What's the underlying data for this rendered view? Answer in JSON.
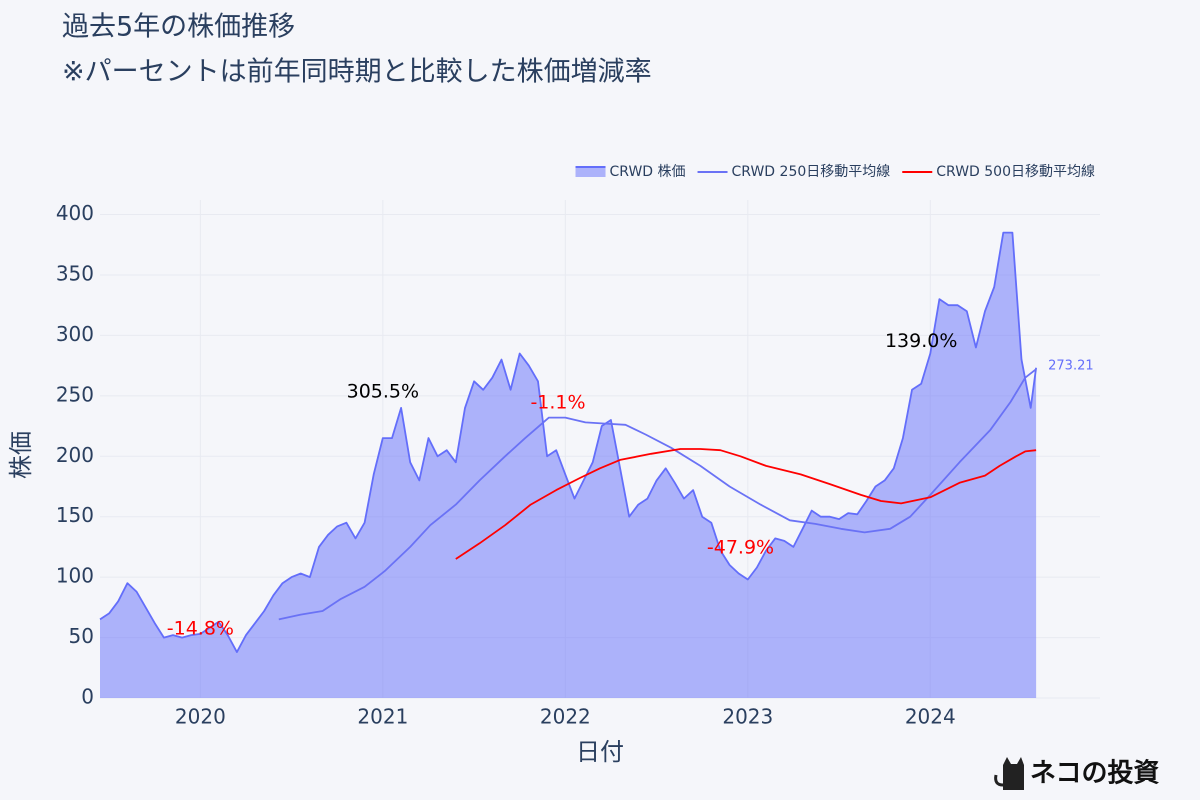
{
  "chart_data": {
    "type": "area",
    "title": "過去5年の株価推移",
    "subtitle": "※パーセントは前年同時期と比較した株価増減率",
    "x_label": "日付",
    "y_label": "株価",
    "watermark": "ネコの投資",
    "legend": "top-right",
    "grid": true,
    "xlim": [
      2019.45,
      2024.93
    ],
    "xticks": [
      2020,
      2021,
      2022,
      2023,
      2024
    ],
    "ylim": [
      0,
      412
    ],
    "yticks": [
      0,
      50,
      100,
      150,
      200,
      250,
      300,
      350,
      400
    ],
    "series": [
      {
        "name": "CRWD 株価",
        "color": "#636efa",
        "fill": true,
        "last_label": "273.21",
        "x": [
          2019.45,
          2019.5,
          2019.55,
          2019.6,
          2019.65,
          2019.7,
          2019.75,
          2019.8,
          2019.85,
          2019.9,
          2019.95,
          2020.0,
          2020.05,
          2020.1,
          2020.15,
          2020.2,
          2020.25,
          2020.3,
          2020.35,
          2020.4,
          2020.45,
          2020.5,
          2020.55,
          2020.6,
          2020.65,
          2020.7,
          2020.75,
          2020.8,
          2020.85,
          2020.9,
          2020.95,
          2021.0,
          2021.05,
          2021.1,
          2021.15,
          2021.2,
          2021.25,
          2021.3,
          2021.35,
          2021.4,
          2021.45,
          2021.5,
          2021.55,
          2021.6,
          2021.65,
          2021.7,
          2021.75,
          2021.8,
          2021.85,
          2021.9,
          2021.95,
          2022.0,
          2022.05,
          2022.1,
          2022.15,
          2022.2,
          2022.25,
          2022.3,
          2022.35,
          2022.4,
          2022.45,
          2022.5,
          2022.55,
          2022.6,
          2022.65,
          2022.7,
          2022.75,
          2022.8,
          2022.85,
          2022.9,
          2022.95,
          2023.0,
          2023.05,
          2023.1,
          2023.15,
          2023.2,
          2023.25,
          2023.3,
          2023.35,
          2023.4,
          2023.45,
          2023.5,
          2023.55,
          2023.6,
          2023.65,
          2023.7,
          2023.75,
          2023.8,
          2023.85,
          2023.9,
          2023.95,
          2024.0,
          2024.05,
          2024.1,
          2024.15,
          2024.2,
          2024.25,
          2024.3,
          2024.35,
          2024.4,
          2024.45,
          2024.5,
          2024.55,
          2024.58
        ],
        "values": [
          65,
          70,
          80,
          95,
          88,
          75,
          62,
          50,
          52,
          50,
          52,
          53,
          58,
          63,
          52,
          38,
          52,
          62,
          72,
          85,
          95,
          100,
          103,
          100,
          125,
          135,
          142,
          145,
          132,
          145,
          185,
          215,
          215,
          240,
          195,
          180,
          215,
          200,
          205,
          195,
          240,
          262,
          255,
          265,
          280,
          255,
          285,
          275,
          262,
          200,
          205,
          185,
          165,
          180,
          195,
          225,
          230,
          190,
          150,
          160,
          165,
          180,
          190,
          178,
          165,
          172,
          150,
          145,
          122,
          110,
          103,
          98,
          108,
          122,
          132,
          130,
          125,
          140,
          155,
          150,
          150,
          148,
          153,
          152,
          163,
          175,
          180,
          190,
          215,
          255,
          260,
          285,
          330,
          325,
          325,
          320,
          290,
          320,
          340,
          385,
          385,
          280,
          240,
          273.21
        ]
      },
      {
        "name": "CRWD 250日移動平均線",
        "color": "#6a72f5",
        "fill": false,
        "x": [
          2020.43,
          2020.55,
          2020.67,
          2020.77,
          2020.9,
          2021.01,
          2021.15,
          2021.26,
          2021.4,
          2021.53,
          2021.67,
          2021.78,
          2021.91,
          2022.0,
          2022.11,
          2022.22,
          2022.33,
          2022.44,
          2022.58,
          2022.74,
          2022.9,
          2023.07,
          2023.23,
          2023.37,
          2023.51,
          2023.64,
          2023.78,
          2023.89,
          2024.0,
          2024.16,
          2024.33,
          2024.44,
          2024.52,
          2024.58
        ],
        "values": [
          65,
          69,
          72,
          82,
          92,
          105,
          125,
          143,
          160,
          180,
          200,
          215,
          232,
          232,
          228,
          227,
          226,
          218,
          207,
          192,
          175,
          160,
          147,
          144,
          140,
          137,
          140,
          150,
          168,
          195,
          222,
          245,
          265,
          272
        ]
      },
      {
        "name": "CRWD 500日移動平均線",
        "color": "#ff0000",
        "fill": false,
        "x": [
          2021.4,
          2021.53,
          2021.67,
          2021.81,
          2021.95,
          2022.08,
          2022.19,
          2022.3,
          2022.47,
          2022.63,
          2022.74,
          2022.85,
          2022.96,
          2023.1,
          2023.29,
          2023.45,
          2023.62,
          2023.73,
          2023.84,
          2024.0,
          2024.16,
          2024.3,
          2024.38,
          2024.47,
          2024.52,
          2024.58
        ],
        "values": [
          115,
          128,
          143,
          160,
          172,
          182,
          190,
          197,
          202,
          206,
          206,
          205,
          200,
          192,
          185,
          177,
          168,
          163,
          161,
          166,
          178,
          184,
          192,
          200,
          204,
          205
        ]
      }
    ],
    "annotations": [
      {
        "text": "-14.8%",
        "x": 2020.0,
        "y": 57,
        "color": "#ff0000"
      },
      {
        "text": "305.5%",
        "x": 2021.0,
        "y": 253,
        "color": "#000000"
      },
      {
        "text": "-1.1%",
        "x": 2021.96,
        "y": 244,
        "color": "#ff0000"
      },
      {
        "text": "-47.9%",
        "x": 2022.96,
        "y": 124,
        "color": "#ff0000"
      },
      {
        "text": "139.0%",
        "x": 2023.95,
        "y": 295,
        "color": "#000000"
      }
    ]
  }
}
